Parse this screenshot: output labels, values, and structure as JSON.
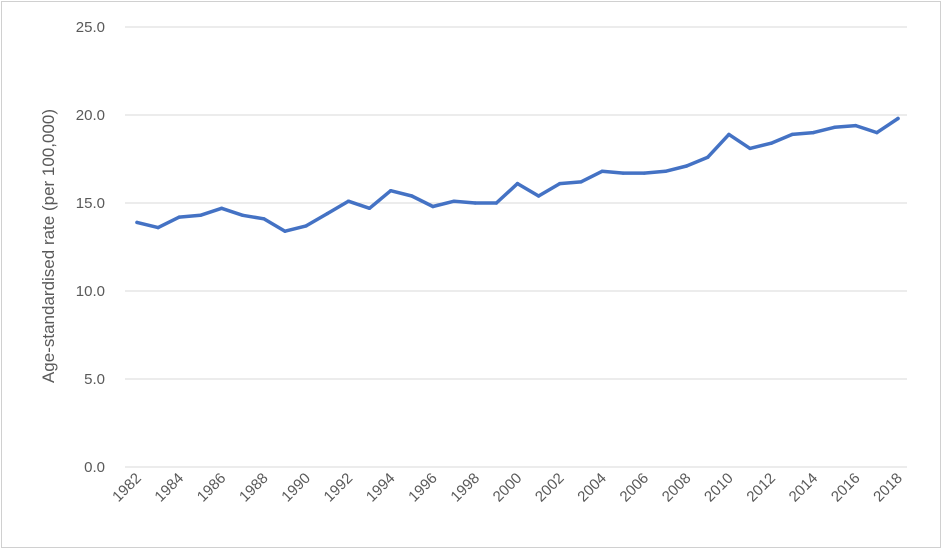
{
  "chart_data": {
    "type": "line",
    "title": "",
    "xlabel": "",
    "ylabel": "Age-standardised rate (per 100,000)",
    "ylim": [
      0,
      25
    ],
    "yticks": [
      "0.0",
      "5.0",
      "10.0",
      "15.0",
      "20.0",
      "25.0"
    ],
    "x": [
      1982,
      1983,
      1984,
      1985,
      1986,
      1987,
      1988,
      1989,
      1990,
      1991,
      1992,
      1993,
      1994,
      1995,
      1996,
      1997,
      1998,
      1999,
      2000,
      2001,
      2002,
      2003,
      2004,
      2005,
      2006,
      2007,
      2008,
      2009,
      2010,
      2011,
      2012,
      2013,
      2014,
      2015,
      2016,
      2017,
      2018
    ],
    "xtick_labels": [
      "1982",
      "1984",
      "1986",
      "1988",
      "1990",
      "1992",
      "1994",
      "1996",
      "1998",
      "2000",
      "2002",
      "2004",
      "2006",
      "2008",
      "2010",
      "2012",
      "2014",
      "2016",
      "2018"
    ],
    "series": [
      {
        "values": [
          13.9,
          13.6,
          14.2,
          14.3,
          14.7,
          14.3,
          14.1,
          13.4,
          13.7,
          14.4,
          15.1,
          14.7,
          15.7,
          15.4,
          14.8,
          15.1,
          15.0,
          15.0,
          16.1,
          15.4,
          16.1,
          16.2,
          16.8,
          16.7,
          16.7,
          16.8,
          17.1,
          17.6,
          18.9,
          18.1,
          18.4,
          18.9,
          19.0,
          19.3,
          19.4,
          19.0,
          19.8
        ]
      }
    ],
    "grid": "horizontal",
    "line_color": "#4472c4",
    "grid_color": "#d9d9d9"
  }
}
